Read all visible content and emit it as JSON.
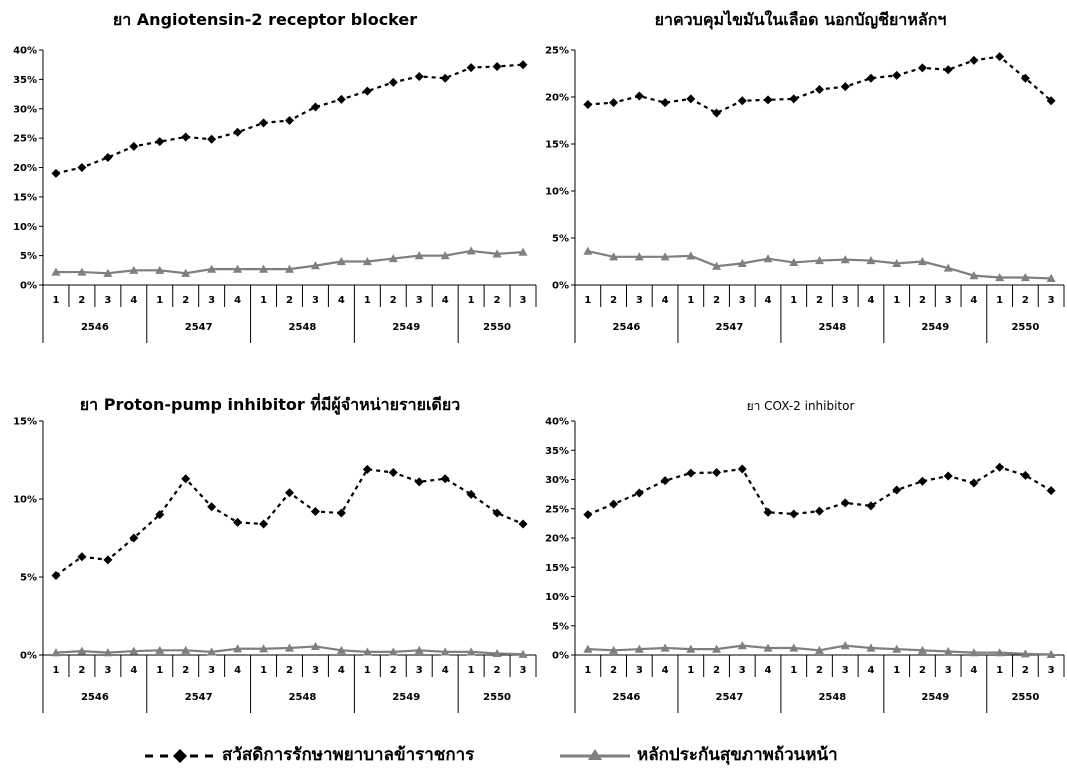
{
  "legend": {
    "series_0": "สวัสดิการรักษาพยาบาลข้าราชการ",
    "series_1": "หลักประกันสุขภาพถ้วนหน้า"
  },
  "colors": {
    "series_0": "#000000",
    "series_1": "#7f7f7f"
  },
  "chart_data": [
    {
      "type": "line",
      "title": "ยา Angiotensin-2 receptor blocker",
      "x": [
        "1",
        "2",
        "3",
        "4",
        "1",
        "2",
        "3",
        "4",
        "1",
        "2",
        "3",
        "4",
        "1",
        "2",
        "3",
        "4",
        "1",
        "2",
        "3"
      ],
      "x_groups": [
        {
          "label": "2546",
          "count": 4
        },
        {
          "label": "2547",
          "count": 4
        },
        {
          "label": "2548",
          "count": 4
        },
        {
          "label": "2549",
          "count": 4
        },
        {
          "label": "2550",
          "count": 3
        }
      ],
      "ylim": [
        0,
        40
      ],
      "yticks": [
        "0%",
        "5%",
        "10%",
        "15%",
        "20%",
        "25%",
        "30%",
        "35%",
        "40%"
      ],
      "series": [
        {
          "name": "สวัสดิการรักษาพยาบาลข้าราชการ",
          "values": [
            19,
            20,
            21.7,
            23.6,
            24.4,
            25.2,
            24.8,
            26,
            27.6,
            28,
            30.3,
            31.6,
            33,
            34.5,
            35.5,
            35.2,
            37,
            37.2,
            37.5
          ]
        },
        {
          "name": "หลักประกันสุขภาพถ้วนหน้า",
          "values": [
            2.2,
            2.2,
            2,
            2.5,
            2.5,
            2,
            2.7,
            2.7,
            2.7,
            2.7,
            3.3,
            4,
            4,
            4.5,
            5,
            5,
            5.8,
            5.3,
            5.6
          ]
        }
      ]
    },
    {
      "type": "line",
      "title": "ยาควบคุมไขมันในเลือด นอกบัญชียาหลักฯ",
      "x": [
        "1",
        "2",
        "3",
        "4",
        "1",
        "2",
        "3",
        "4",
        "1",
        "2",
        "3",
        "4",
        "1",
        "2",
        "3",
        "4",
        "1",
        "2",
        "3"
      ],
      "x_groups": [
        {
          "label": "2546",
          "count": 4
        },
        {
          "label": "2547",
          "count": 4
        },
        {
          "label": "2548",
          "count": 4
        },
        {
          "label": "2549",
          "count": 4
        },
        {
          "label": "2550",
          "count": 3
        }
      ],
      "ylim": [
        0,
        25
      ],
      "yticks": [
        "0%",
        "5%",
        "10%",
        "15%",
        "20%",
        "25%"
      ],
      "series": [
        {
          "name": "สวัสดิการรักษาพยาบาลข้าราชการ",
          "values": [
            19.2,
            19.4,
            20.1,
            19.4,
            19.8,
            18.3,
            19.6,
            19.7,
            19.8,
            20.8,
            21.1,
            22,
            22.3,
            23.1,
            22.9,
            23.9,
            24.3,
            22,
            19.6
          ]
        },
        {
          "name": "หลักประกันสุขภาพถ้วนหน้า",
          "values": [
            3.6,
            3,
            3,
            3,
            3.1,
            2,
            2.3,
            2.8,
            2.4,
            2.6,
            2.7,
            2.6,
            2.3,
            2.5,
            1.8,
            1,
            0.8,
            0.8,
            0.7
          ]
        }
      ]
    },
    {
      "type": "line",
      "title": "ยา Proton-pump inhibitor ที่มีผู้จำหน่ายรายเดียว",
      "x": [
        "1",
        "2",
        "3",
        "4",
        "1",
        "2",
        "3",
        "4",
        "1",
        "2",
        "3",
        "4",
        "1",
        "2",
        "3",
        "4",
        "1",
        "2",
        "3"
      ],
      "x_groups": [
        {
          "label": "2546",
          "count": 4
        },
        {
          "label": "2547",
          "count": 4
        },
        {
          "label": "2548",
          "count": 4
        },
        {
          "label": "2549",
          "count": 4
        },
        {
          "label": "2550",
          "count": 3
        }
      ],
      "ylim": [
        0,
        15
      ],
      "yticks": [
        "0%",
        "5%",
        "10%",
        "15%"
      ],
      "series": [
        {
          "name": "สวัสดิการรักษาพยาบาลข้าราชการ",
          "values": [
            5.1,
            6.3,
            6.1,
            7.5,
            9,
            11.3,
            9.5,
            8.5,
            8.4,
            10.4,
            9.2,
            9.1,
            11.9,
            11.7,
            11.1,
            11.3,
            10.3,
            9.1,
            8.4
          ]
        },
        {
          "name": "หลักประกันสุขภาพถ้วนหน้า",
          "values": [
            0.15,
            0.25,
            0.15,
            0.25,
            0.3,
            0.3,
            0.2,
            0.4,
            0.4,
            0.45,
            0.55,
            0.3,
            0.2,
            0.2,
            0.3,
            0.2,
            0.2,
            0.1,
            0.05
          ]
        }
      ]
    },
    {
      "type": "line",
      "title": "ยา COX-2 inhibitor",
      "x": [
        "1",
        "2",
        "3",
        "4",
        "1",
        "2",
        "3",
        "4",
        "1",
        "2",
        "3",
        "4",
        "1",
        "2",
        "3",
        "4",
        "1",
        "2",
        "3"
      ],
      "x_groups": [
        {
          "label": "2546",
          "count": 4
        },
        {
          "label": "2547",
          "count": 4
        },
        {
          "label": "2548",
          "count": 4
        },
        {
          "label": "2549",
          "count": 4
        },
        {
          "label": "2550",
          "count": 3
        }
      ],
      "ylim": [
        0,
        40
      ],
      "yticks": [
        "0%",
        "5%",
        "10%",
        "15%",
        "20%",
        "25%",
        "30%",
        "35%",
        "40%"
      ],
      "series": [
        {
          "name": "สวัสดิการรักษาพยาบาลข้าราชการ",
          "values": [
            24,
            25.8,
            27.7,
            29.8,
            31.1,
            31.2,
            31.8,
            24.4,
            24.1,
            24.6,
            26,
            25.5,
            28.2,
            29.7,
            30.6,
            29.4,
            32.1,
            30.7,
            28.1
          ]
        },
        {
          "name": "หลักประกันสุขภาพถ้วนหน้า",
          "values": [
            1,
            0.8,
            1,
            1.2,
            1,
            1,
            1.6,
            1.2,
            1.2,
            0.8,
            1.6,
            1.2,
            1,
            0.8,
            0.6,
            0.4,
            0.4,
            0.2,
            0.1
          ]
        }
      ]
    }
  ]
}
